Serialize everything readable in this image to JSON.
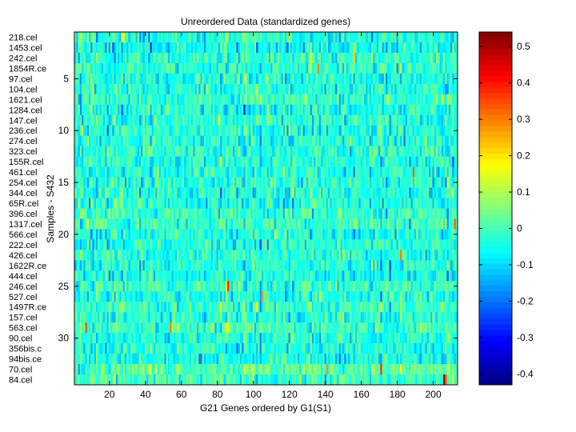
{
  "chart_data": {
    "type": "heatmap",
    "title": "Unreordered Data (standardized genes)",
    "xlabel": "G21 Genes ordered by G1(S1)",
    "ylabel": "Samples - S432",
    "x_ticks": [
      20,
      40,
      60,
      80,
      100,
      120,
      140,
      160,
      180,
      200
    ],
    "xlim": [
      0.5,
      213.5
    ],
    "n_columns": 213,
    "y_ticks": [
      5,
      10,
      15,
      20,
      25,
      30
    ],
    "ylim": [
      0.5,
      34.5
    ],
    "row_labels": [
      "218.cel",
      "1453.cel",
      "242.cel",
      "1854R.ce",
      "97.cel",
      "104.cel",
      "1621.cel",
      "1284.cel",
      "147.cel",
      "236.cel",
      "274.cel",
      "323.cel",
      "155R.cel",
      "461.cel",
      "254.cel",
      "344.cel",
      "65R.cel",
      "396.cel",
      "1317.cel",
      "566.cel",
      "222.cel",
      "426.cel",
      "1622R.ce",
      "444.cel",
      "246.cel",
      "527.cel",
      "1497R.ce",
      "157.cel",
      "563.cel",
      "90.cel",
      "356bis.c",
      "94bis.ce",
      "70.cel",
      "84.cel"
    ],
    "colorbar": {
      "colormap": "jet",
      "range": [
        -0.43,
        0.54
      ],
      "ticks": [
        -0.4,
        -0.3,
        -0.2,
        -0.1,
        0,
        0.1,
        0.2,
        0.3,
        0.4,
        0.5
      ],
      "tick_labels": [
        "-0.4",
        "-0.3",
        "-0.2",
        "-0.1",
        "0",
        "0.1",
        "0.2",
        "0.3",
        "0.4",
        "0.5"
      ]
    },
    "values_note_hidden": "",
    "row_bias": [
      0.0,
      -0.02,
      0.0,
      0.01,
      0.0,
      0.0,
      0.02,
      0.0,
      0.0,
      0.0,
      0.0,
      0.01,
      0.0,
      0.0,
      0.0,
      0.0,
      0.0,
      0.02,
      0.03,
      0.0,
      0.0,
      0.0,
      0.0,
      -0.01,
      0.02,
      0.0,
      0.02,
      0.0,
      0.03,
      0.0,
      0.0,
      -0.01,
      0.06,
      0.02
    ],
    "highlights": [
      {
        "row": 25,
        "col": 86,
        "value": 0.4
      },
      {
        "row": 25,
        "col": 85,
        "value": 0.2
      },
      {
        "row": 33,
        "col": 171,
        "value": 0.38
      },
      {
        "row": 34,
        "col": 206,
        "value": 0.5
      },
      {
        "row": 34,
        "col": 207,
        "value": 0.33
      },
      {
        "row": 19,
        "col": 212,
        "value": 0.34
      },
      {
        "row": 4,
        "col": 136,
        "value": 0.3
      },
      {
        "row": 29,
        "col": 7,
        "value": 0.35
      },
      {
        "row": 29,
        "col": 54,
        "value": 0.3
      },
      {
        "row": 14,
        "col": 189,
        "value": 0.32
      },
      {
        "row": 3,
        "col": 156,
        "value": 0.22
      },
      {
        "row": 33,
        "col": 141,
        "value": 0.28
      },
      {
        "row": 9,
        "col": 81,
        "value": 0.18
      },
      {
        "row": 22,
        "col": 182,
        "value": 0.3
      },
      {
        "row": 26,
        "col": 105,
        "value": 0.28
      }
    ]
  }
}
